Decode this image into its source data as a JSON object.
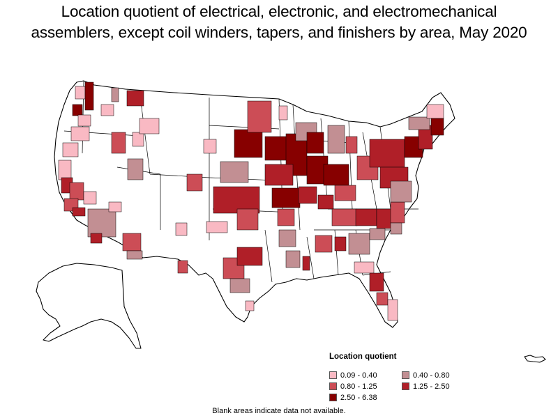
{
  "title": {
    "line1": "Location quotient of electrical, electronic, and electromechanical",
    "line2": "assemblers, except coil winders, tapers, and finishers by area, May 2020"
  },
  "legend": {
    "title": "Location quotient",
    "items": [
      {
        "label": "0.09 - 0.40",
        "color": "#f9b9c3"
      },
      {
        "label": "0.40 - 0.80",
        "color": "#c28f93"
      },
      {
        "label": "0.80 - 1.25",
        "color": "#cc4d56"
      },
      {
        "label": "1.25 - 2.50",
        "color": "#b01f28"
      },
      {
        "label": "2.50 - 6.38",
        "color": "#870000"
      }
    ]
  },
  "footnote": "Blank areas indicate data not available."
}
